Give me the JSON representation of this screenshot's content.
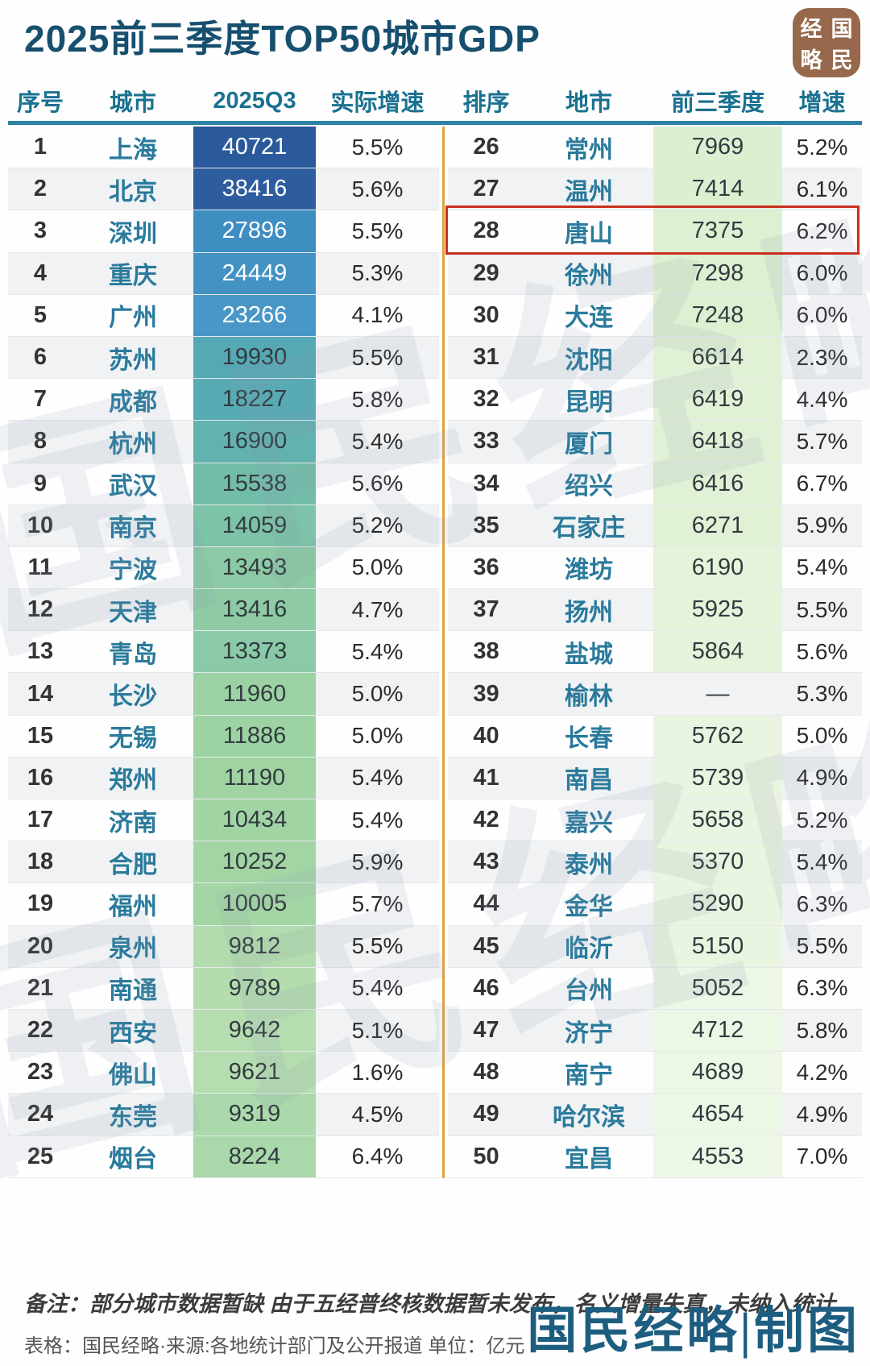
{
  "title": "2025前三季度TOP50城市GDP",
  "watermark": "国民经略",
  "logo": {
    "name": "国民经略",
    "grid": [
      "经",
      "国",
      "略",
      "民"
    ],
    "bg_color": "#97684c"
  },
  "footer": {
    "note": "备注：部分城市数据暂缺 由于五经普终核数据暂未发布，名义增量失真，未纳入统计",
    "source": "表格：国民经略·来源:各地统计部门及公开报道 单位：亿元",
    "credit": "国民经略|制图"
  },
  "colors": {
    "title": "#174f6e",
    "header_text": "#1a7190",
    "header_underline": "#2d82a3",
    "table_divider": "#e0a23f",
    "highlight_border": "#c9301f",
    "city_text": "#2a7a9c",
    "credit": "#1d5e80",
    "logo_bg": "#97684c",
    "left_cells": [
      "#2a5a9b",
      "#2d5d9e",
      "#3f8ec1",
      "#4392c3",
      "#4897c6",
      "#55a9b5",
      "#58abb5",
      "#62b3af",
      "#72bdaa",
      "#7cc3a7",
      "#8ccaa5",
      "#8ecba4",
      "#8acaa8",
      "#9cd2a3",
      "#9dd3a3",
      "#9fd4a2",
      "#a1d4a3",
      "#a3d5a4",
      "#a4d6a5",
      "#b3dcae",
      "#b4dcaf",
      "#b5ddb0",
      "#b6ddb0",
      "#abd9ab",
      "#a9d8aa"
    ],
    "left_white_text_rows": 5,
    "right_cells": [
      "#ddefd1",
      "#ddefd1",
      "#def0d2",
      "#def0d2",
      "#def0d2",
      "#e1f1d6",
      "#e1f1d6",
      "#e1f1d6",
      "#e1f1d6",
      "#e1f1d6",
      "#e5f3da",
      "#e5f3da",
      "#e5f3da",
      "none",
      "#eaf5e1",
      "#eaf5e1",
      "#eaf5e1",
      "#eaf5e1",
      "#eaf5e1",
      "#eaf5e1",
      "#edf7e6",
      "#edf7e6",
      "#edf7e6",
      "#edf7e6",
      "#edf7e6"
    ]
  },
  "chart_data": {
    "type": "table",
    "title": "2025前三季度TOP50城市GDP",
    "unit": "亿元",
    "left_columns": [
      "序号",
      "城市",
      "2025Q3",
      "实际增速"
    ],
    "right_columns": [
      "排序",
      "地市",
      "前三季度",
      "增速"
    ],
    "left_rows": [
      [
        "1",
        "上海",
        "40721",
        "5.5%"
      ],
      [
        "2",
        "北京",
        "38416",
        "5.6%"
      ],
      [
        "3",
        "深圳",
        "27896",
        "5.5%"
      ],
      [
        "4",
        "重庆",
        "24449",
        "5.3%"
      ],
      [
        "5",
        "广州",
        "23266",
        "4.1%"
      ],
      [
        "6",
        "苏州",
        "19930",
        "5.5%"
      ],
      [
        "7",
        "成都",
        "18227",
        "5.8%"
      ],
      [
        "8",
        "杭州",
        "16900",
        "5.4%"
      ],
      [
        "9",
        "武汉",
        "15538",
        "5.6%"
      ],
      [
        "10",
        "南京",
        "14059",
        "5.2%"
      ],
      [
        "11",
        "宁波",
        "13493",
        "5.0%"
      ],
      [
        "12",
        "天津",
        "13416",
        "4.7%"
      ],
      [
        "13",
        "青岛",
        "13373",
        "5.4%"
      ],
      [
        "14",
        "长沙",
        "11960",
        "5.0%"
      ],
      [
        "15",
        "无锡",
        "11886",
        "5.0%"
      ],
      [
        "16",
        "郑州",
        "11190",
        "5.4%"
      ],
      [
        "17",
        "济南",
        "10434",
        "5.4%"
      ],
      [
        "18",
        "合肥",
        "10252",
        "5.9%"
      ],
      [
        "19",
        "福州",
        "10005",
        "5.7%"
      ],
      [
        "20",
        "泉州",
        "9812",
        "5.5%"
      ],
      [
        "21",
        "南通",
        "9789",
        "5.4%"
      ],
      [
        "22",
        "西安",
        "9642",
        "5.1%"
      ],
      [
        "23",
        "佛山",
        "9621",
        "1.6%"
      ],
      [
        "24",
        "东莞",
        "9319",
        "4.5%"
      ],
      [
        "25",
        "烟台",
        "8224",
        "6.4%"
      ]
    ],
    "right_rows": [
      [
        "26",
        "常州",
        "7969",
        "5.2%"
      ],
      [
        "27",
        "温州",
        "7414",
        "6.1%"
      ],
      [
        "28",
        "唐山",
        "7375",
        "6.2%"
      ],
      [
        "29",
        "徐州",
        "7298",
        "6.0%"
      ],
      [
        "30",
        "大连",
        "7248",
        "6.0%"
      ],
      [
        "31",
        "沈阳",
        "6614",
        "2.3%"
      ],
      [
        "32",
        "昆明",
        "6419",
        "4.4%"
      ],
      [
        "33",
        "厦门",
        "6418",
        "5.7%"
      ],
      [
        "34",
        "绍兴",
        "6416",
        "6.7%"
      ],
      [
        "35",
        "石家庄",
        "6271",
        "5.9%"
      ],
      [
        "36",
        "潍坊",
        "6190",
        "5.4%"
      ],
      [
        "37",
        "扬州",
        "5925",
        "5.5%"
      ],
      [
        "38",
        "盐城",
        "5864",
        "5.6%"
      ],
      [
        "39",
        "榆林",
        "—",
        "5.3%"
      ],
      [
        "40",
        "长春",
        "5762",
        "5.0%"
      ],
      [
        "41",
        "南昌",
        "5739",
        "4.9%"
      ],
      [
        "42",
        "嘉兴",
        "5658",
        "5.2%"
      ],
      [
        "43",
        "泰州",
        "5370",
        "5.4%"
      ],
      [
        "44",
        "金华",
        "5290",
        "6.3%"
      ],
      [
        "45",
        "临沂",
        "5150",
        "5.5%"
      ],
      [
        "46",
        "台州",
        "5052",
        "6.3%"
      ],
      [
        "47",
        "济宁",
        "4712",
        "5.8%"
      ],
      [
        "48",
        "南宁",
        "4689",
        "4.2%"
      ],
      [
        "49",
        "哈尔滨",
        "4654",
        "4.9%"
      ],
      [
        "50",
        "宜昌",
        "4553",
        "7.0%"
      ]
    ],
    "highlighted_row": [
      "28",
      "唐山",
      "7375",
      "6.2%"
    ]
  }
}
